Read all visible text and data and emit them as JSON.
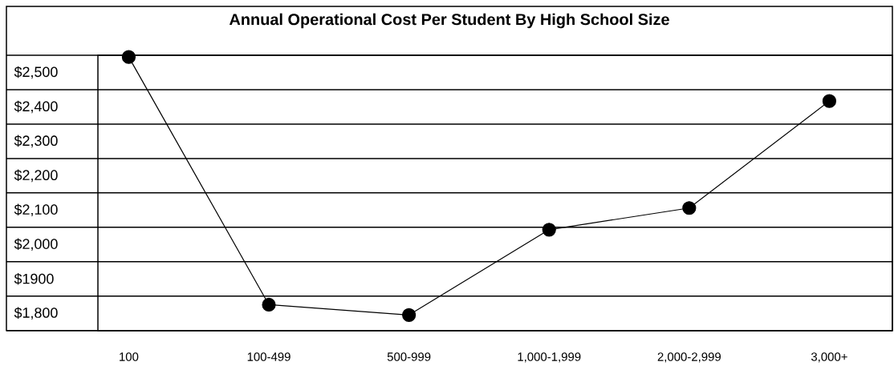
{
  "chart_data": {
    "type": "line",
    "title": "Annual Operational Cost Per Student By High School Size",
    "categories": [
      "100",
      "100-499",
      "500-999",
      "1,000-1,999",
      "2,000-2,999",
      "3,000+"
    ],
    "values": [
      2545,
      1825,
      1795,
      2043,
      2106,
      2417
    ],
    "color": "#000000",
    "marker": "circle",
    "line_style": "solid",
    "ylim": [
      1750,
      2550
    ],
    "yticks": [
      {
        "value": 1800,
        "label": "$1,800"
      },
      {
        "value": 1900,
        "label": "$1900"
      },
      {
        "value": 2000,
        "label": "$2,000"
      },
      {
        "value": 2100,
        "label": "$2,100"
      },
      {
        "value": 2200,
        "label": "$2,200"
      },
      {
        "value": 2300,
        "label": "$2,300"
      },
      {
        "value": 2400,
        "label": "$2,400"
      },
      {
        "value": 2500,
        "label": "$2,500"
      }
    ],
    "grid": "y"
  }
}
